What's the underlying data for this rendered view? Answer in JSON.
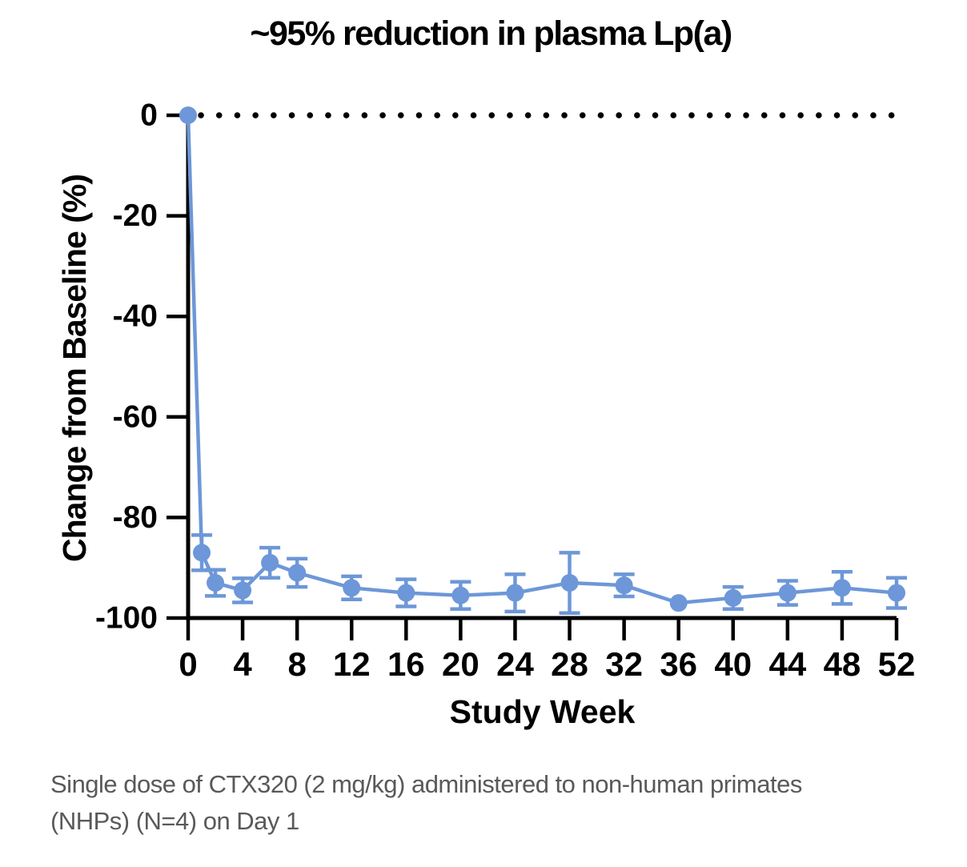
{
  "page": {
    "background": "#ffffff"
  },
  "chart_data": {
    "type": "line",
    "title": "~95% reduction in plasma Lp(a)",
    "xlabel": "Study Week",
    "ylabel": "Change from Baseline (%)",
    "x": [
      0,
      1,
      2,
      4,
      6,
      8,
      12,
      16,
      20,
      24,
      28,
      32,
      36,
      40,
      44,
      48,
      52
    ],
    "y": [
      0,
      -87,
      -93,
      -94.5,
      -89,
      -91,
      -94,
      -95,
      -95.5,
      -95,
      -93,
      -93.5,
      -97,
      -96,
      -95,
      -94,
      -95
    ],
    "yerr": [
      0,
      3.5,
      2.6,
      2.4,
      3,
      2.8,
      2.3,
      2.7,
      2.7,
      3.7,
      6,
      2.2,
      0,
      2.2,
      2.4,
      3.2,
      3
    ],
    "xticks": [
      0,
      4,
      8,
      12,
      16,
      20,
      24,
      28,
      32,
      36,
      40,
      44,
      48,
      52
    ],
    "yticks": [
      0,
      -20,
      -40,
      -60,
      -80,
      -100
    ],
    "xlim": [
      0,
      52
    ],
    "ylim": [
      -100,
      0
    ],
    "grid": false,
    "legend": "none",
    "series_name": "CTX320 2 mg/kg NHPs",
    "series_color": "#6D97D8",
    "axis_color": "#000000",
    "reference_line": {
      "y": 0,
      "style": "dotted",
      "color": "#000000"
    }
  },
  "caption": {
    "lines": [
      "Single dose of CTX320 (2 mg/kg) administered to non-human primates",
      "(NHPs) (N=4) on Day 1"
    ],
    "color": "#595959"
  }
}
